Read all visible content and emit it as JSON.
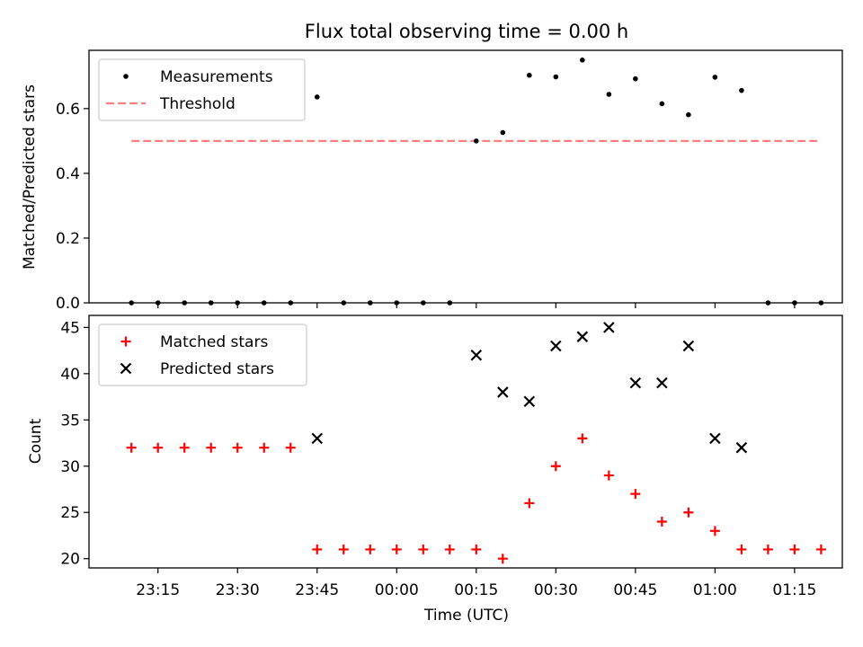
{
  "chart_data": [
    {
      "type": "scatter",
      "title": "Flux total observing time = 0.00 h",
      "xlabel": "",
      "ylabel": "Matched/Predicted stars",
      "ylim": [
        0,
        0.78
      ],
      "yticks": [
        "0.0",
        "0.2",
        "0.4",
        "0.6"
      ],
      "legend_position": "upper-left",
      "series": [
        {
          "name": "Measurements",
          "marker": "dot",
          "color": "#000000",
          "x": [
            "23:10",
            "23:15",
            "23:20",
            "23:25",
            "23:30",
            "23:35",
            "23:40",
            "23:45",
            "23:50",
            "23:55",
            "00:00",
            "00:05",
            "00:10",
            "00:15",
            "00:20",
            "00:25",
            "00:30",
            "00:35",
            "00:40",
            "00:45",
            "00:50",
            "00:55",
            "01:00",
            "01:05",
            "01:10",
            "01:15",
            "01:20"
          ],
          "y": [
            0,
            0,
            0,
            0,
            0,
            0,
            0,
            0.636,
            0,
            0,
            0,
            0,
            0,
            0.5,
            0.526,
            0.703,
            0.698,
            0.75,
            0.644,
            0.692,
            0.615,
            0.581,
            0.697,
            0.656,
            0,
            0,
            0
          ]
        },
        {
          "name": "Threshold",
          "style": "dashed",
          "color": "#ff7f7f",
          "x": [
            "23:10",
            "01:20"
          ],
          "y": [
            0.5,
            0.5
          ]
        }
      ]
    },
    {
      "type": "scatter",
      "title": "",
      "xlabel": "Time (UTC)",
      "ylabel": "Count",
      "ylim": [
        19,
        46.3
      ],
      "yticks": [
        "20",
        "25",
        "30",
        "35",
        "40",
        "45"
      ],
      "xlim": [
        "23:02",
        "01:24"
      ],
      "xticks": [
        "23:15",
        "23:30",
        "23:45",
        "00:00",
        "00:15",
        "00:30",
        "00:45",
        "01:00",
        "01:15"
      ],
      "legend_position": "upper-left",
      "series": [
        {
          "name": "Matched stars",
          "marker": "plus",
          "color": "#ff0000",
          "x": [
            "23:10",
            "23:15",
            "23:20",
            "23:25",
            "23:30",
            "23:35",
            "23:40",
            "23:45",
            "23:50",
            "23:55",
            "00:00",
            "00:05",
            "00:10",
            "00:15",
            "00:20",
            "00:25",
            "00:30",
            "00:35",
            "00:40",
            "00:45",
            "00:50",
            "00:55",
            "01:00",
            "01:05",
            "01:10",
            "01:15",
            "01:20"
          ],
          "y": [
            32,
            32,
            32,
            32,
            32,
            32,
            32,
            21,
            21,
            21,
            21,
            21,
            21,
            21,
            20,
            26,
            30,
            33,
            29,
            27,
            24,
            25,
            23,
            21,
            21,
            21,
            21
          ]
        },
        {
          "name": "Predicted stars",
          "marker": "x",
          "color": "#000000",
          "x": [
            "23:45",
            "00:15",
            "00:20",
            "00:25",
            "00:30",
            "00:35",
            "00:40",
            "00:45",
            "00:50",
            "00:55",
            "01:00",
            "01:05"
          ],
          "y": [
            33,
            42,
            38,
            37,
            43,
            44,
            45,
            39,
            39,
            43,
            33,
            32
          ]
        }
      ]
    }
  ]
}
